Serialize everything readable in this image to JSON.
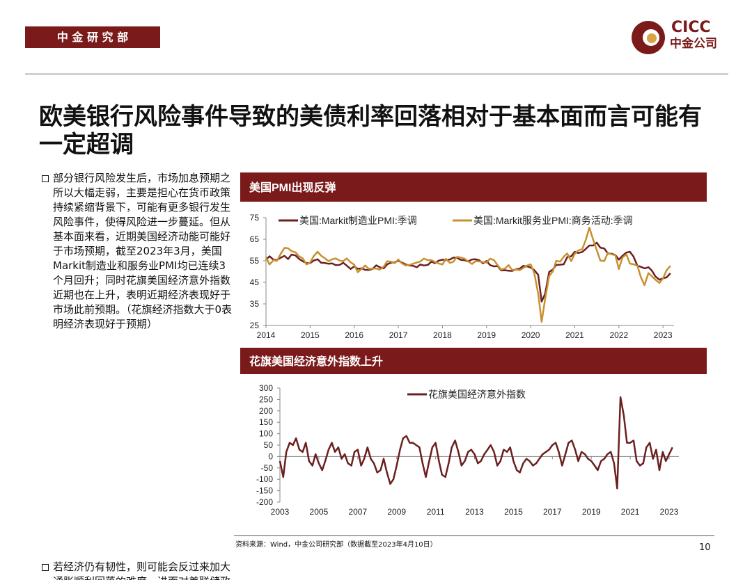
{
  "header": {
    "department": "中 金 研 究 部",
    "logo_name": "CICC",
    "logo_name_cn": "中金公司"
  },
  "title": "欧美银行风险事件导致的美债利率回落相对于基本面而言可能有一定超调",
  "bullets": [
    "部分银行风险发生后，市场加息预期之所以大幅走弱，主要是担心在货币政策持续紧缩背景下，可能有更多银行发生风险事件，使得风险进一步蔓延。但从基本面来看，近期美国经济动能可能好于市场预期，截至2023年3月，美国Markit制造业和服务业PMI均已连续3个月回升；同时花旗美国经济意外指数近期也在上升，表明近期经济表现好于市场此前预期。（花旗经济指数大于0表明经济表现好于预期）",
    "若经济仍有韧性，则可能会反过来加大通胀顺利回落的难度，进而对美联储政策转松形成掣肘。"
  ],
  "source": "资料来源：Wind，中金公司研究部（数据截至2023年4月10日）",
  "page_number": "10",
  "chart_data": [
    {
      "type": "line",
      "title": "美国PMI出现反弹",
      "x": [
        2014.0,
        2014.08,
        2014.17,
        2014.25,
        2014.33,
        2014.42,
        2014.5,
        2014.58,
        2014.67,
        2014.75,
        2014.83,
        2014.92,
        2015.0,
        2015.08,
        2015.17,
        2015.25,
        2015.33,
        2015.42,
        2015.5,
        2015.58,
        2015.67,
        2015.75,
        2015.83,
        2015.92,
        2016.0,
        2016.08,
        2016.17,
        2016.25,
        2016.33,
        2016.42,
        2016.5,
        2016.58,
        2016.67,
        2016.75,
        2016.83,
        2016.92,
        2017.0,
        2017.08,
        2017.17,
        2017.25,
        2017.33,
        2017.42,
        2017.5,
        2017.58,
        2017.67,
        2017.75,
        2017.83,
        2017.92,
        2018.0,
        2018.08,
        2018.17,
        2018.25,
        2018.33,
        2018.42,
        2018.5,
        2018.58,
        2018.67,
        2018.75,
        2018.83,
        2018.92,
        2019.0,
        2019.08,
        2019.17,
        2019.25,
        2019.33,
        2019.42,
        2019.5,
        2019.58,
        2019.67,
        2019.75,
        2019.83,
        2019.92,
        2020.0,
        2020.08,
        2020.17,
        2020.25,
        2020.33,
        2020.42,
        2020.5,
        2020.58,
        2020.67,
        2020.75,
        2020.83,
        2020.92,
        2021.0,
        2021.08,
        2021.17,
        2021.25,
        2021.33,
        2021.42,
        2021.5,
        2021.58,
        2021.67,
        2021.75,
        2021.83,
        2021.92,
        2022.0,
        2022.08,
        2022.17,
        2022.25,
        2022.33,
        2022.42,
        2022.5,
        2022.58,
        2022.67,
        2022.75,
        2022.83,
        2022.92,
        2023.0,
        2023.08,
        2023.17
      ],
      "series": [
        {
          "name": "美国:Markit制造业PMI:季调",
          "color": "#6b1f1f",
          "values": [
            55.5,
            57.1,
            55.5,
            55.4,
            56.4,
            57.3,
            55.8,
            57.9,
            57.5,
            55.9,
            54.8,
            53.9,
            53.9,
            55.1,
            55.7,
            54.1,
            54.0,
            53.6,
            53.8,
            53.0,
            53.1,
            54.1,
            52.8,
            51.2,
            52.4,
            51.3,
            51.5,
            50.8,
            50.7,
            51.3,
            52.9,
            52.0,
            51.5,
            53.4,
            54.1,
            54.3,
            55.0,
            54.2,
            53.3,
            52.8,
            52.7,
            52.0,
            53.3,
            52.8,
            53.1,
            54.6,
            53.9,
            55.1,
            55.5,
            55.3,
            55.6,
            56.5,
            56.4,
            55.4,
            55.3,
            54.7,
            55.6,
            55.7,
            55.3,
            53.8,
            54.9,
            53.0,
            52.4,
            52.6,
            50.5,
            50.6,
            50.4,
            50.3,
            51.1,
            51.3,
            52.6,
            52.4,
            51.9,
            50.7,
            48.5,
            36.1,
            39.8,
            49.8,
            50.9,
            53.1,
            53.2,
            53.4,
            56.7,
            57.1,
            59.2,
            58.6,
            59.1,
            60.5,
            62.1,
            62.1,
            63.4,
            61.1,
            60.7,
            58.4,
            58.3,
            57.7,
            55.5,
            57.3,
            58.8,
            59.2,
            57.0,
            52.7,
            52.2,
            51.5,
            52.0,
            50.4,
            47.7,
            46.2,
            46.9,
            47.3,
            49.2
          ]
        },
        {
          "name": "美国:Markit服务业PMI:商务活动:季调",
          "color": "#c8902f",
          "values": [
            56.7,
            53.3,
            55.3,
            55.0,
            58.1,
            61.0,
            60.8,
            59.5,
            58.9,
            57.1,
            56.2,
            53.3,
            54.2,
            57.1,
            59.2,
            57.4,
            56.2,
            54.8,
            55.7,
            56.1,
            55.1,
            54.8,
            56.1,
            54.3,
            53.2,
            49.7,
            51.3,
            52.8,
            51.3,
            51.4,
            51.4,
            50.9,
            52.3,
            54.8,
            54.6,
            53.9,
            55.6,
            53.8,
            52.8,
            53.1,
            53.6,
            54.2,
            54.7,
            56.0,
            55.3,
            55.3,
            54.5,
            53.7,
            53.3,
            55.9,
            54.0,
            54.6,
            56.8,
            56.5,
            56.0,
            54.8,
            53.5,
            54.8,
            54.7,
            54.4,
            54.2,
            56.0,
            55.3,
            53.0,
            50.9,
            51.5,
            53.0,
            50.7,
            50.9,
            50.6,
            51.6,
            52.8,
            53.4,
            49.4,
            39.8,
            26.7,
            37.5,
            47.9,
            50.0,
            55.0,
            54.6,
            56.9,
            58.4,
            54.8,
            58.3,
            59.8,
            60.4,
            64.7,
            70.4,
            64.6,
            59.9,
            55.1,
            54.9,
            58.7,
            58.0,
            57.6,
            51.2,
            56.5,
            58.0,
            53.7,
            53.4,
            52.7,
            47.3,
            43.7,
            49.3,
            47.8,
            46.2,
            44.7,
            46.8,
            50.6,
            52.6
          ]
        }
      ],
      "xlim": [
        2014,
        2023.25
      ],
      "xticks": [
        2014,
        2015,
        2016,
        2017,
        2018,
        2019,
        2020,
        2021,
        2022,
        2023
      ],
      "ylim": [
        25,
        75
      ],
      "yticks": [
        25,
        35,
        45,
        55,
        65,
        75
      ],
      "legend": "top"
    },
    {
      "type": "line",
      "title": "花旗美国经济意外指数上升",
      "x": [
        2003.0,
        2003.17,
        2003.33,
        2003.5,
        2003.67,
        2003.83,
        2004.0,
        2004.17,
        2004.33,
        2004.5,
        2004.67,
        2004.83,
        2005.0,
        2005.17,
        2005.33,
        2005.5,
        2005.67,
        2005.83,
        2006.0,
        2006.17,
        2006.33,
        2006.5,
        2006.67,
        2006.83,
        2007.0,
        2007.17,
        2007.33,
        2007.5,
        2007.67,
        2007.83,
        2008.0,
        2008.17,
        2008.33,
        2008.5,
        2008.67,
        2008.83,
        2009.0,
        2009.17,
        2009.33,
        2009.5,
        2009.67,
        2009.83,
        2010.0,
        2010.17,
        2010.33,
        2010.5,
        2010.67,
        2010.83,
        2011.0,
        2011.17,
        2011.33,
        2011.5,
        2011.67,
        2011.83,
        2012.0,
        2012.17,
        2012.33,
        2012.5,
        2012.67,
        2012.83,
        2013.0,
        2013.17,
        2013.33,
        2013.5,
        2013.67,
        2013.83,
        2014.0,
        2014.17,
        2014.33,
        2014.5,
        2014.67,
        2014.83,
        2015.0,
        2015.17,
        2015.33,
        2015.5,
        2015.67,
        2015.83,
        2016.0,
        2016.17,
        2016.33,
        2016.5,
        2016.67,
        2016.83,
        2017.0,
        2017.17,
        2017.33,
        2017.5,
        2017.67,
        2017.83,
        2018.0,
        2018.17,
        2018.33,
        2018.5,
        2018.67,
        2018.83,
        2019.0,
        2019.17,
        2019.33,
        2019.5,
        2019.67,
        2019.83,
        2020.0,
        2020.17,
        2020.33,
        2020.5,
        2020.67,
        2020.83,
        2021.0,
        2021.17,
        2021.33,
        2021.5,
        2021.67,
        2021.83,
        2022.0,
        2022.17,
        2022.33,
        2022.5,
        2022.67,
        2022.83,
        2023.0,
        2023.17
      ],
      "series": [
        {
          "name": "花旗美国经济意外指数",
          "color": "#6b1f1f",
          "values": [
            -20,
            -90,
            20,
            60,
            50,
            80,
            30,
            20,
            60,
            -20,
            -40,
            10,
            -30,
            -60,
            -20,
            30,
            60,
            20,
            40,
            -10,
            10,
            -30,
            -40,
            20,
            30,
            -40,
            -10,
            40,
            -10,
            -30,
            -70,
            -60,
            -10,
            -70,
            -120,
            -100,
            -40,
            30,
            80,
            90,
            60,
            60,
            50,
            40,
            -30,
            -90,
            -20,
            40,
            60,
            -20,
            -80,
            -90,
            -30,
            40,
            70,
            20,
            -40,
            -20,
            20,
            30,
            10,
            -30,
            -20,
            10,
            30,
            50,
            20,
            -40,
            -20,
            30,
            20,
            40,
            -20,
            -60,
            -70,
            -30,
            -10,
            -20,
            -40,
            -30,
            -10,
            10,
            20,
            30,
            50,
            60,
            20,
            -40,
            10,
            60,
            70,
            30,
            -20,
            20,
            10,
            -10,
            -20,
            -40,
            -60,
            -20,
            -10,
            10,
            20,
            -30,
            -140,
            260,
            180,
            60,
            60,
            70,
            -20,
            -40,
            -30,
            40,
            60,
            -10,
            30,
            -60,
            20,
            -20,
            10,
            40
          ]
        }
      ],
      "xlim": [
        2003,
        2023.5
      ],
      "xticks": [
        2003,
        2005,
        2007,
        2009,
        2011,
        2013,
        2015,
        2017,
        2019,
        2021,
        2023
      ],
      "ylim": [
        -200,
        300
      ],
      "yticks": [
        -200,
        -150,
        -100,
        -50,
        0,
        50,
        100,
        150,
        200,
        250,
        300
      ],
      "legend": "top"
    }
  ]
}
